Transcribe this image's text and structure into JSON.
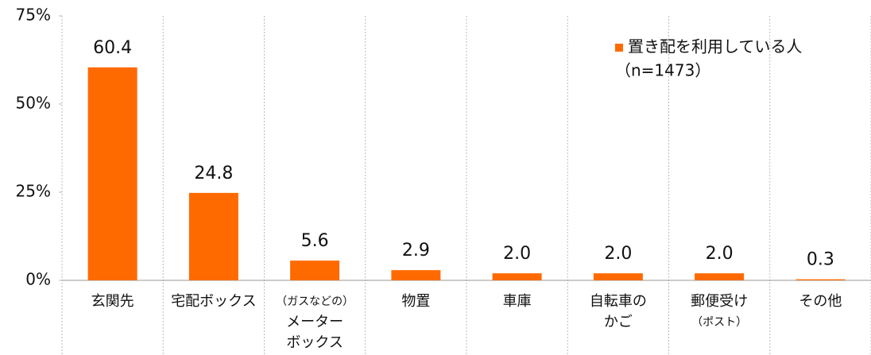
{
  "chart_data": {
    "type": "bar",
    "categories": [
      [
        "玄関先"
      ],
      [
        "宅配ボックス"
      ],
      [
        "（ガスなどの）",
        "メーター",
        "ボックス"
      ],
      [
        "物置"
      ],
      [
        "車庫"
      ],
      [
        "自転車の",
        "かご"
      ],
      [
        "郵便受け",
        "（ポスト）"
      ],
      [
        "その他"
      ]
    ],
    "series": [
      {
        "name": "置き配を利用している人",
        "color": "#ff6a00",
        "values": [
          60.4,
          24.8,
          5.6,
          2.9,
          2.0,
          2.0,
          2.0,
          0.3
        ],
        "value_labels": [
          "60.4",
          "24.8",
          "5.6",
          "2.9",
          "2.0",
          "2.0",
          "2.0",
          "0.3"
        ]
      }
    ],
    "legend_note": "（n=1473）",
    "ylim": [
      0,
      75
    ],
    "yticks": [
      {
        "value": 0,
        "label": "0%"
      },
      {
        "value": 25,
        "label": "25%"
      },
      {
        "value": 50,
        "label": "50%"
      },
      {
        "value": 75,
        "label": "75%"
      }
    ],
    "legend_position": "upper right"
  }
}
